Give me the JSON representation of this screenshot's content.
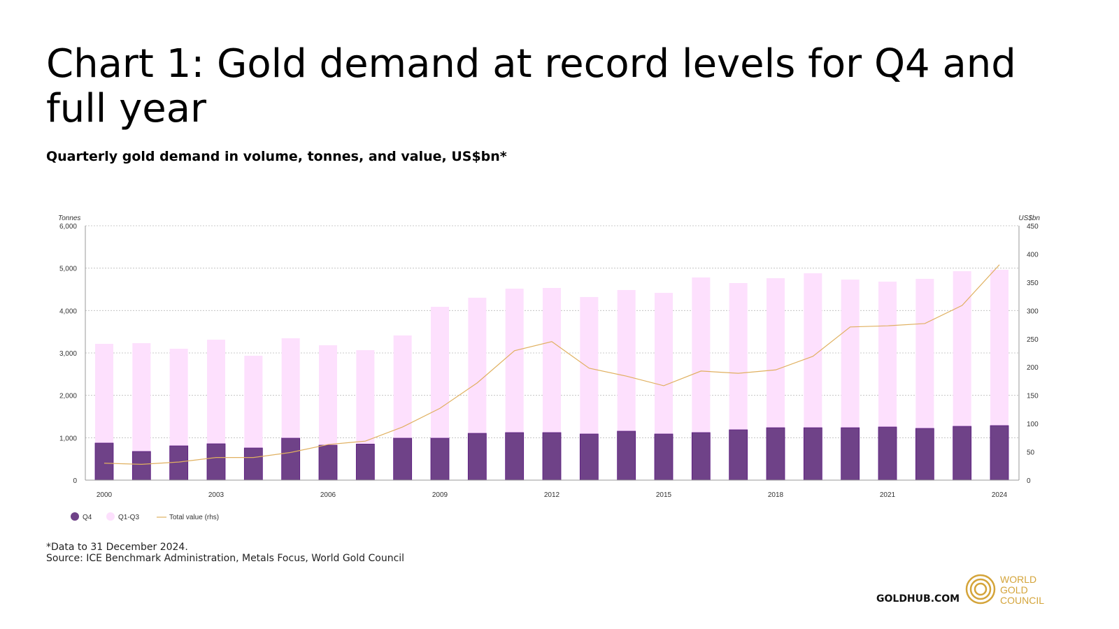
{
  "header": {
    "title": "Chart 1: Gold demand at record levels for Q4 and full year",
    "subtitle": "Quarterly gold demand in volume, tonnes, and value, US$bn*"
  },
  "footer": {
    "note": "*Data to 31 December 2024.",
    "source": "Source: ICE Benchmark Administration, Metals Focus, World Gold Council",
    "site": "GOLDHUB.COM",
    "logo_text": [
      "WORLD",
      "GOLD",
      "COUNCIL"
    ]
  },
  "chart_data": {
    "type": "bar",
    "stacked": true,
    "categories": [
      "2000",
      "2001",
      "2002",
      "2003",
      "2004",
      "2005",
      "2006",
      "2007",
      "2008",
      "2009",
      "2010",
      "2011",
      "2012",
      "2013",
      "2014",
      "2015",
      "2016",
      "2017",
      "2018",
      "2019",
      "2020",
      "2021",
      "2022",
      "2023",
      "2024"
    ],
    "x_tick_labels": [
      "2000",
      "2003",
      "2006",
      "2009",
      "2012",
      "2015",
      "2018",
      "2021",
      "2024"
    ],
    "ylabel": "Tonnes",
    "ylim": [
      0,
      6000
    ],
    "yticks": [
      0,
      1000,
      2000,
      3000,
      4000,
      5000,
      6000
    ],
    "y2label": "US$bn",
    "y2lim": [
      0,
      450
    ],
    "y2ticks": [
      0,
      50,
      100,
      150,
      200,
      250,
      300,
      350,
      400,
      450
    ],
    "grid": true,
    "legend_placement": "bottom-left",
    "series": [
      {
        "name": "Q4",
        "type": "bar",
        "axis": "left",
        "color": "#6f4288",
        "values": [
          874,
          676,
          808,
          857,
          758,
          989,
          824,
          850,
          989,
          989,
          1104,
          1121,
          1121,
          1088,
          1154,
          1088,
          1121,
          1187,
          1236,
          1236,
          1236,
          1253,
          1220,
          1269,
          1286
        ]
      },
      {
        "name": "Q1-Q3",
        "type": "bar",
        "axis": "left",
        "color": "#fde0fd",
        "values": [
          2340,
          2555,
          2291,
          2456,
          2176,
          2357,
          2357,
          2216,
          2423,
          3099,
          3198,
          3395,
          3412,
          3230,
          3329,
          3329,
          3659,
          3461,
          3527,
          3643,
          3494,
          3428,
          3527,
          3659,
          3675
        ]
      },
      {
        "name": "Total value (rhs)",
        "type": "line",
        "axis": "right",
        "color": "#e0b060",
        "values": [
          30,
          28,
          32,
          40,
          40,
          49,
          63,
          69,
          94,
          127,
          172,
          229,
          245,
          198,
          184,
          167,
          193,
          189,
          195,
          219,
          271,
          273,
          277,
          309,
          381
        ]
      }
    ]
  }
}
